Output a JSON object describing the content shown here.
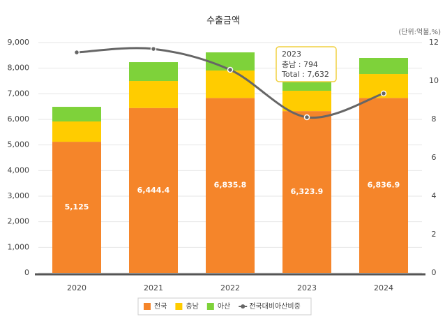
{
  "chart_data": {
    "type": "stacked-bar-line",
    "title": "수출금액",
    "unit_label": "(단위:억불,%)",
    "categories": [
      "2020",
      "2021",
      "2022",
      "2023",
      "2024"
    ],
    "series": [
      {
        "name": "전국",
        "color": "#f5852a",
        "values": [
          5125,
          6444.4,
          6835.8,
          6323.9,
          6836.9
        ],
        "value_labels": [
          "5,125",
          "6,444.4",
          "6,835.8",
          "6,323.9",
          "6,836.9"
        ]
      },
      {
        "name": "충남",
        "color": "#ffcc00",
        "values": [
          793,
          1055,
          1073,
          794,
          935
        ]
      },
      {
        "name": "아산",
        "color": "#7ed23a",
        "values": [
          572,
          736,
          709,
          514,
          628
        ]
      },
      {
        "name": "전국대비아산비중",
        "color": "#666666",
        "axis": "y2",
        "values": [
          11.49,
          11.67,
          10.58,
          8.11,
          9.35
        ]
      }
    ],
    "ylim": [
      0,
      9000
    ],
    "yticks": [
      0,
      {
        "value": 1000,
        "label": "1,000"
      },
      {
        "value": 2000,
        "label": "2,000"
      },
      {
        "value": 3000,
        "label": "3,000"
      },
      {
        "value": 4000,
        "label": "4,000"
      },
      {
        "value": 5000,
        "label": "5,000"
      },
      {
        "value": 6000,
        "label": "6,000"
      },
      {
        "value": 7000,
        "label": "7,000"
      },
      {
        "value": 8000,
        "label": "8,000"
      },
      {
        "value": 9000,
        "label": "9,000"
      }
    ],
    "y2lim": [
      0,
      12
    ],
    "y2ticks": [
      0,
      2,
      4,
      6,
      8,
      10,
      12
    ],
    "grid": true,
    "tooltip": {
      "title": "2023",
      "lines": [
        "충남 : 794",
        "Total : 7,632"
      ]
    }
  }
}
